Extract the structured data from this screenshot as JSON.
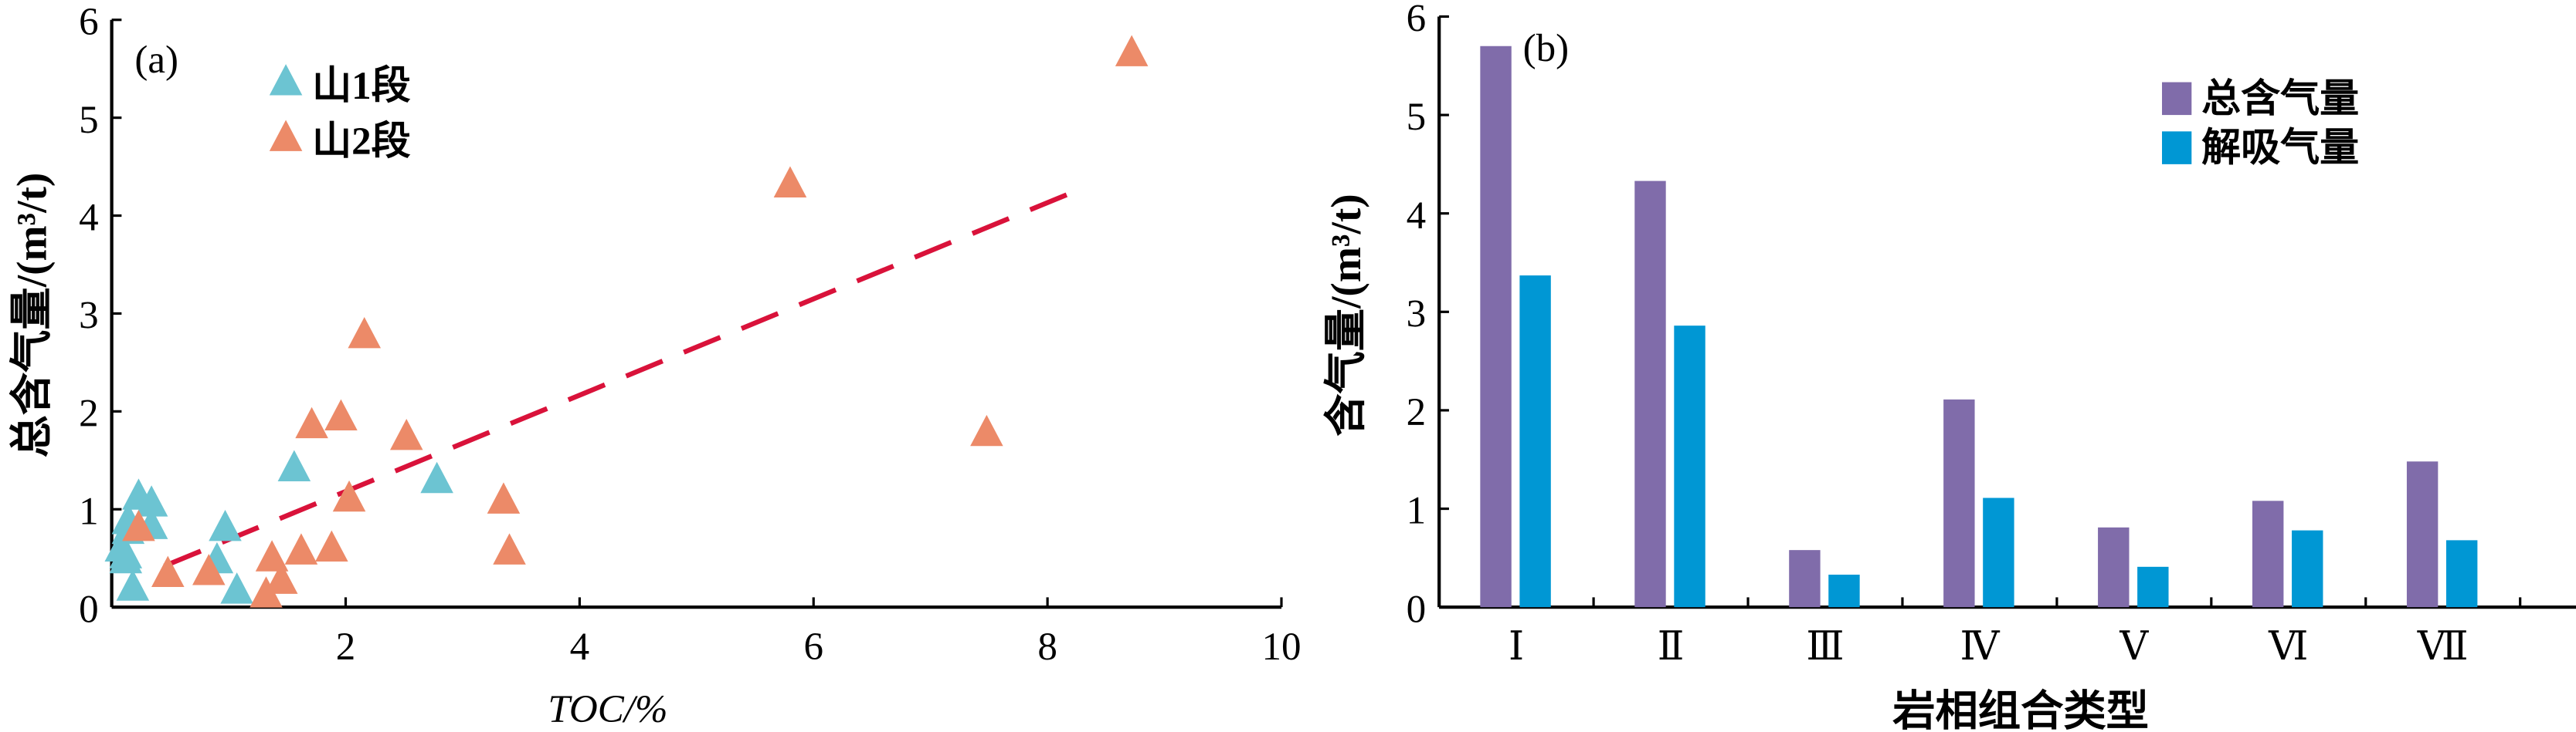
{
  "chart_data": [
    {
      "type": "scatter",
      "panel_label": "(a)",
      "xlabel": "TOC/%",
      "ylabel": "总含气量/(m³/t)",
      "xlim": [
        0,
        10
      ],
      "ylim": [
        0,
        6
      ],
      "xticks": [
        "2",
        "4",
        "6",
        "8",
        "10"
      ],
      "yticks": [
        "0",
        "1",
        "2",
        "3",
        "4",
        "5",
        "6"
      ],
      "legend_position": "top-left",
      "series": [
        {
          "name": "山1段",
          "color": "#6cc4d2",
          "marker": "triangle",
          "points": [
            [
              0.12,
              0.53
            ],
            [
              0.08,
              0.6
            ],
            [
              0.12,
              0.48
            ],
            [
              0.14,
              0.78
            ],
            [
              0.14,
              0.88
            ],
            [
              0.23,
              1.13
            ],
            [
              0.34,
              1.06
            ],
            [
              0.34,
              0.83
            ],
            [
              0.18,
              0.2
            ],
            [
              0.97,
              0.81
            ],
            [
              0.9,
              0.48
            ],
            [
              1.07,
              0.17
            ],
            [
              1.56,
              1.42
            ],
            [
              2.78,
              1.3
            ]
          ]
        },
        {
          "name": "山2段",
          "color": "#ec8a68",
          "marker": "triangle",
          "points": [
            [
              8.72,
              5.66
            ],
            [
              5.8,
              4.32
            ],
            [
              7.48,
              1.78
            ],
            [
              2.16,
              2.78
            ],
            [
              1.96,
              1.94
            ],
            [
              1.71,
              1.86
            ],
            [
              2.52,
              1.74
            ],
            [
              2.03,
              1.11
            ],
            [
              3.35,
              1.09
            ],
            [
              3.4,
              0.57
            ],
            [
              0.23,
              0.81
            ],
            [
              0.48,
              0.34
            ],
            [
              0.83,
              0.36
            ],
            [
              1.37,
              0.5
            ],
            [
              1.62,
              0.57
            ],
            [
              1.88,
              0.6
            ],
            [
              1.45,
              0.27
            ],
            [
              1.32,
              0.13
            ]
          ]
        }
      ],
      "trendline": {
        "color": "#d9123a",
        "style": "dashed",
        "from": [
          0.45,
          0.42
        ],
        "to": [
          8.3,
          4.28
        ]
      }
    },
    {
      "type": "bar",
      "panel_label": "(b)",
      "xlabel": "岩相组合类型",
      "ylabel": "含气量/(m³/t)",
      "ylim": [
        0,
        6
      ],
      "yticks": [
        "0",
        "1",
        "2",
        "3",
        "4",
        "5",
        "6"
      ],
      "categories": [
        "Ⅰ",
        "Ⅱ",
        "Ⅲ",
        "Ⅳ",
        "Ⅴ",
        "Ⅵ",
        "Ⅶ"
      ],
      "legend_position": "top-right",
      "series": [
        {
          "name": "总含气量",
          "color": "#806caa",
          "values": [
            5.7,
            4.33,
            0.58,
            2.11,
            0.81,
            1.08,
            1.48
          ]
        },
        {
          "name": "解吸气量",
          "color": "#0097d4",
          "values": [
            3.37,
            2.86,
            0.33,
            1.11,
            0.41,
            0.78,
            0.68
          ]
        }
      ]
    }
  ]
}
